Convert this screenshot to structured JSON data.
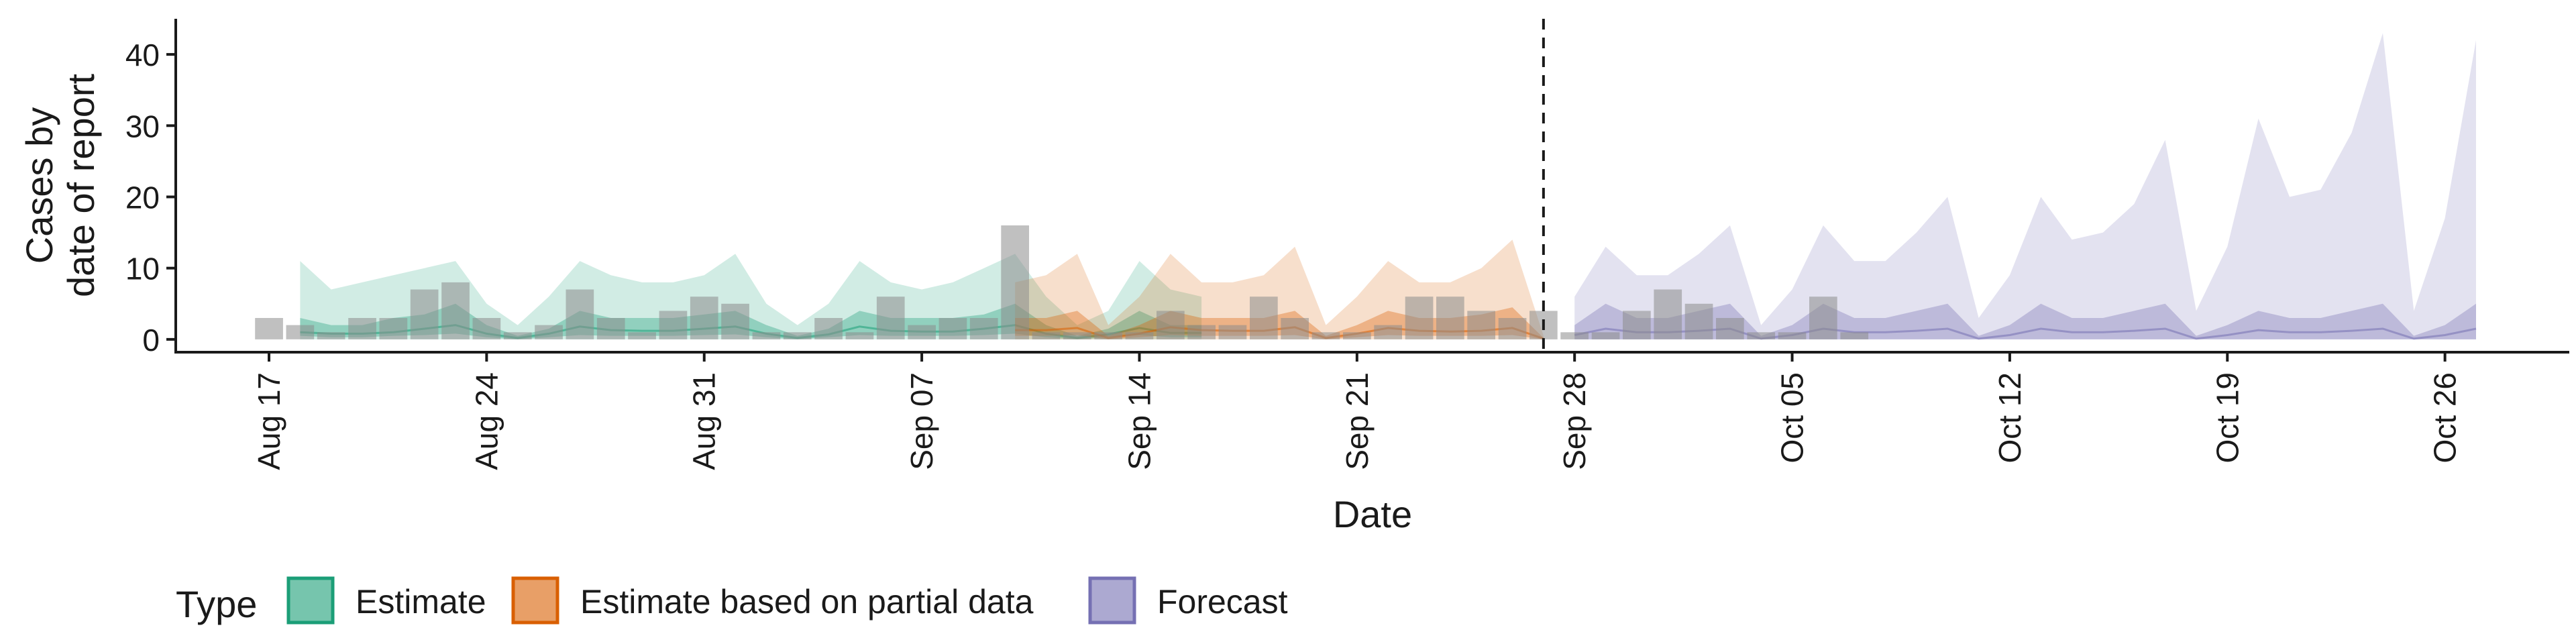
{
  "chart_data": {
    "type": "area",
    "xlabel": "Date",
    "ylabel_lines": [
      "Cases by",
      "date of report"
    ],
    "x_range": [
      "2020-08-14",
      "2020-10-30"
    ],
    "ylim": [
      -1.8,
      45
    ],
    "y_ticks": [
      0,
      10,
      20,
      30,
      40
    ],
    "y_tick_labels": [
      "0",
      "10",
      "20",
      "30",
      "40"
    ],
    "x_ticks": [
      "2020-08-17",
      "2020-08-24",
      "2020-08-31",
      "2020-09-07",
      "2020-09-14",
      "2020-09-21",
      "2020-09-28",
      "2020-10-05",
      "2020-10-12",
      "2020-10-19",
      "2020-10-26"
    ],
    "x_tick_labels": [
      "Aug 17",
      "Aug 24",
      "Aug 31",
      "Sep 07",
      "Sep 14",
      "Sep 21",
      "Sep 28",
      "Oct 05",
      "Oct 12",
      "Oct 19",
      "Oct 26"
    ],
    "vline_date": "2020-09-27",
    "grid": false,
    "legend_position": "bottom-left",
    "colors": {
      "Estimate": "#1b9e77",
      "Estimate based on partial data": "#d95f02",
      "Forecast": "#7570b3",
      "bars": "#8c8c8c"
    },
    "observed_cases": {
      "start_date": "2020-08-17",
      "values": [
        3,
        2,
        1,
        3,
        3,
        7,
        8,
        3,
        1,
        2,
        7,
        3,
        1,
        4,
        6,
        5,
        1,
        1,
        3,
        1,
        6,
        2,
        3,
        3,
        16,
        1,
        1,
        1,
        1,
        4,
        2,
        2,
        6,
        3,
        1,
        1,
        2,
        6,
        6,
        4,
        3,
        4,
        1,
        1,
        4,
        7,
        5,
        3,
        1,
        1,
        6,
        1
      ]
    },
    "series": [
      {
        "name": "Estimate",
        "start_date": "2020-08-18",
        "outer_upper": [
          11,
          7,
          8,
          9,
          10,
          11,
          5,
          2,
          6,
          11,
          9,
          8,
          8,
          9,
          12,
          5,
          2,
          5,
          11,
          8,
          7,
          8,
          10,
          12,
          6,
          2,
          4,
          11,
          7,
          6
        ],
        "outer_lower": [
          0,
          0,
          0,
          0,
          0,
          0,
          0,
          0,
          0,
          0,
          0,
          0,
          0,
          0,
          0,
          0,
          0,
          0,
          0,
          0,
          0,
          0,
          0,
          0,
          0,
          0,
          0,
          0,
          0,
          0
        ],
        "inner_upper": [
          3,
          2,
          2,
          3,
          3.5,
          5,
          2,
          0.5,
          1.5,
          4,
          3,
          3,
          3,
          3.5,
          4,
          2,
          0.5,
          1.5,
          4,
          3,
          3,
          3,
          3.5,
          5,
          2,
          0.5,
          1.5,
          4,
          2,
          2
        ],
        "inner_lower": [
          0.5,
          0.3,
          0.3,
          0.5,
          0.6,
          0.8,
          0.3,
          0,
          0.3,
          0.6,
          0.5,
          0.5,
          0.5,
          0.6,
          0.7,
          0.3,
          0,
          0.3,
          0.6,
          0.5,
          0.5,
          0.5,
          0.6,
          0.8,
          0.3,
          0,
          0.3,
          0.6,
          0.3,
          0.3
        ],
        "median": [
          1,
          0.8,
          0.8,
          1,
          1.5,
          2,
          0.8,
          0.2,
          0.8,
          1.8,
          1.3,
          1.2,
          1.2,
          1.5,
          1.8,
          0.8,
          0.2,
          0.7,
          1.8,
          1.2,
          1.1,
          1.1,
          1.5,
          2,
          0.8,
          0.2,
          0.7,
          1.6,
          0.9,
          0.9
        ]
      },
      {
        "name": "Estimate based on partial data",
        "start_date": "2020-09-10",
        "outer_upper": [
          8,
          9,
          12,
          2,
          6,
          12,
          8,
          8,
          9,
          13,
          2,
          6,
          11,
          8,
          8,
          10,
          14,
          0.5
        ],
        "outer_lower": [
          0,
          0,
          0,
          0,
          0,
          0,
          0,
          0,
          0,
          0,
          0,
          0,
          0,
          0,
          0,
          0,
          0,
          0
        ],
        "inner_upper": [
          3,
          3,
          4,
          0.5,
          2,
          4,
          3,
          3,
          3,
          4,
          0.5,
          2,
          4,
          3,
          3,
          3.5,
          4.5,
          0.2
        ],
        "inner_lower": [
          0.5,
          0.5,
          0.6,
          0,
          0.3,
          0.6,
          0.5,
          0.5,
          0.5,
          0.6,
          0,
          0.3,
          0.6,
          0.5,
          0.5,
          0.5,
          0.6,
          0
        ],
        "median": [
          1.3,
          1.3,
          1.6,
          0.2,
          0.8,
          1.7,
          1.3,
          1.2,
          1.2,
          1.7,
          0.2,
          0.8,
          1.6,
          1.2,
          1.1,
          1.2,
          1.6,
          0.1
        ]
      },
      {
        "name": "Forecast",
        "start_date": "2020-09-28",
        "outer_upper": [
          6,
          13,
          9,
          9,
          12,
          16,
          2,
          7,
          16,
          11,
          11,
          15,
          20,
          3,
          9,
          20,
          14,
          15,
          19,
          28,
          4,
          13,
          31,
          20,
          21,
          29,
          43,
          4,
          17,
          42
        ],
        "outer_lower": [
          0,
          0,
          0,
          0,
          0,
          0,
          0,
          0,
          0,
          0,
          0,
          0,
          0,
          0,
          0,
          0,
          0,
          0,
          0,
          0,
          0,
          0,
          0,
          0,
          0,
          0,
          0,
          0,
          0,
          0
        ],
        "inner_upper": [
          2,
          5,
          3,
          3,
          4,
          5,
          0.5,
          2,
          5,
          3,
          3,
          4,
          5,
          0.5,
          2,
          5,
          3,
          3,
          4,
          5,
          0.5,
          2,
          4,
          3,
          3,
          4,
          5,
          0.5,
          2,
          5
        ],
        "inner_lower": [
          0,
          0,
          0,
          0,
          0,
          0,
          0,
          0,
          0,
          0,
          0,
          0,
          0,
          0,
          0,
          0,
          0,
          0,
          0,
          0,
          0,
          0,
          0,
          0,
          0,
          0,
          0,
          0,
          0,
          0
        ],
        "median": [
          0.6,
          1.5,
          1,
          1,
          1.2,
          1.5,
          0.1,
          0.6,
          1.5,
          1,
          1,
          1.2,
          1.5,
          0.1,
          0.6,
          1.5,
          1,
          1,
          1.2,
          1.5,
          0.1,
          0.6,
          1.3,
          1,
          1,
          1.2,
          1.5,
          0.1,
          0.6,
          1.5
        ]
      }
    ],
    "legend": {
      "title": "Type",
      "items": [
        "Estimate",
        "Estimate based on partial data",
        "Forecast"
      ]
    }
  }
}
